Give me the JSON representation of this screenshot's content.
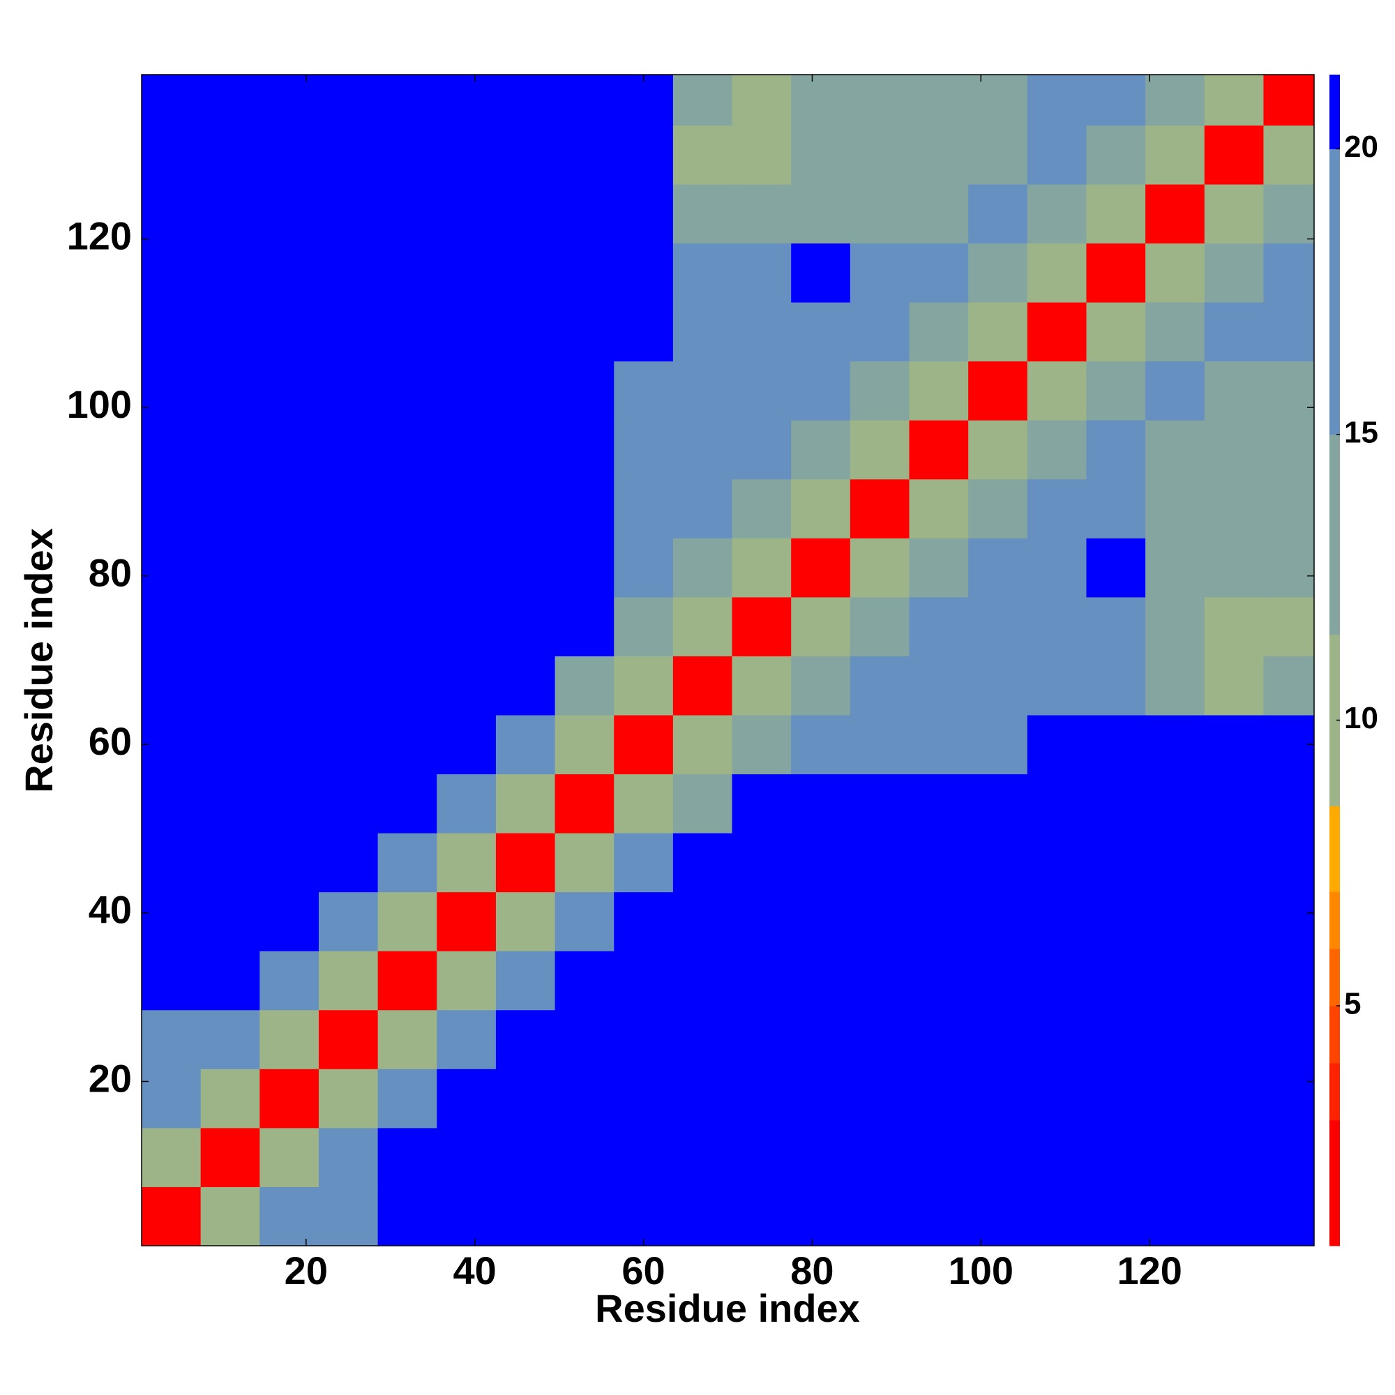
{
  "chart_data": {
    "type": "heatmap",
    "xlabel": "Residue index",
    "ylabel": "Residue index",
    "x_edges": [
      0.5,
      7.5,
      14.5,
      21.5,
      28.5,
      35.5,
      42.5,
      49.5,
      56.5,
      63.5,
      70.5,
      77.5,
      84.5,
      91.5,
      98.5,
      105.5,
      112.5,
      119.5,
      126.5,
      133.5,
      139.5
    ],
    "y_edges": [
      0.5,
      7.5,
      14.5,
      21.5,
      28.5,
      35.5,
      42.5,
      49.5,
      56.5,
      63.5,
      70.5,
      77.5,
      84.5,
      91.5,
      98.5,
      105.5,
      112.5,
      119.5,
      126.5,
      133.5,
      139.5
    ],
    "xlim": [
      0.5,
      139.5
    ],
    "ylim": [
      0.5,
      139.5
    ],
    "xticks": [
      20,
      40,
      60,
      80,
      100,
      120
    ],
    "yticks": [
      20,
      40,
      60,
      80,
      100,
      120
    ],
    "z": [
      [
        3,
        10,
        16,
        18,
        21,
        21,
        21,
        21,
        21,
        21,
        21,
        21,
        21,
        21,
        21,
        21,
        21,
        21,
        21,
        21
      ],
      [
        10,
        3,
        10,
        16,
        21,
        21,
        21,
        21,
        21,
        21,
        21,
        21,
        21,
        21,
        21,
        21,
        21,
        21,
        21,
        21
      ],
      [
        16,
        10,
        3,
        10,
        19,
        21,
        21,
        21,
        21,
        21,
        21,
        21,
        21,
        21,
        21,
        21,
        21,
        21,
        21,
        21
      ],
      [
        18,
        16,
        10,
        3,
        10,
        19,
        21,
        21,
        21,
        21,
        21,
        21,
        21,
        21,
        21,
        21,
        21,
        21,
        21,
        21
      ],
      [
        21,
        21,
        19,
        10,
        3,
        10,
        19,
        21,
        21,
        21,
        21,
        21,
        21,
        21,
        21,
        21,
        21,
        21,
        21,
        21
      ],
      [
        21,
        21,
        21,
        19,
        10,
        3,
        10,
        19,
        21,
        21,
        21,
        21,
        21,
        21,
        21,
        21,
        21,
        21,
        21,
        21
      ],
      [
        21,
        21,
        21,
        21,
        19,
        10,
        3,
        10,
        19,
        21,
        21,
        21,
        21,
        21,
        21,
        21,
        21,
        21,
        21,
        21
      ],
      [
        21,
        21,
        21,
        21,
        21,
        19,
        10,
        3,
        10,
        15,
        21,
        21,
        21,
        21,
        21,
        21,
        21,
        21,
        21,
        21
      ],
      [
        21,
        21,
        21,
        21,
        21,
        21,
        19,
        10,
        3,
        10,
        15,
        17,
        16,
        16,
        17,
        21,
        21,
        21,
        21,
        21
      ],
      [
        21,
        21,
        21,
        21,
        21,
        21,
        21,
        15,
        10,
        3,
        10,
        15,
        17,
        16,
        16,
        17,
        17,
        15,
        11,
        15
      ],
      [
        21,
        21,
        21,
        21,
        21,
        21,
        21,
        21,
        15,
        10,
        3,
        10,
        15,
        17,
        16,
        17,
        17,
        15,
        11,
        11
      ],
      [
        21,
        21,
        21,
        21,
        21,
        21,
        21,
        21,
        17,
        15,
        10,
        3,
        10,
        15,
        17,
        19,
        21,
        15,
        15,
        15
      ],
      [
        21,
        21,
        21,
        21,
        21,
        21,
        21,
        21,
        16,
        17,
        15,
        10,
        3,
        10,
        15,
        17,
        19,
        13,
        15,
        15
      ],
      [
        21,
        21,
        21,
        21,
        21,
        21,
        21,
        21,
        16,
        16,
        17,
        15,
        10,
        3,
        10,
        15,
        17,
        13,
        15,
        15
      ],
      [
        21,
        21,
        21,
        21,
        21,
        21,
        21,
        21,
        17,
        16,
        16,
        17,
        15,
        10,
        3,
        10,
        15,
        17,
        15,
        15
      ],
      [
        21,
        21,
        21,
        21,
        21,
        21,
        21,
        21,
        21,
        17,
        17,
        19,
        17,
        15,
        10,
        3,
        10,
        15,
        17,
        19
      ],
      [
        21,
        21,
        21,
        21,
        21,
        21,
        21,
        21,
        21,
        17,
        17,
        21,
        19,
        17,
        15,
        10,
        3,
        10,
        15,
        17
      ],
      [
        21,
        21,
        21,
        21,
        21,
        21,
        21,
        21,
        21,
        15,
        15,
        15,
        13,
        13,
        17,
        15,
        10,
        3,
        10,
        15
      ],
      [
        21,
        21,
        21,
        21,
        21,
        21,
        21,
        21,
        21,
        11,
        11,
        15,
        15,
        15,
        15,
        17,
        15,
        10,
        3,
        10
      ],
      [
        21,
        21,
        21,
        21,
        21,
        21,
        21,
        21,
        21,
        15,
        11,
        15,
        15,
        15,
        15,
        19,
        17,
        15,
        10,
        3
      ]
    ],
    "clim": [
      0.8,
      21.3
    ],
    "cticks": [
      5,
      10,
      15,
      20
    ],
    "levels": [
      0.8,
      3,
      4,
      5,
      6,
      7,
      8.5,
      11.5,
      15,
      20,
      21.3
    ],
    "colors": [
      "#ff0000",
      "#ff2200",
      "#ff4400",
      "#ff6600",
      "#ff8800",
      "#ffaa00",
      "#9db489",
      "#85a6a0",
      "#6690c0",
      "#0000ff"
    ]
  }
}
